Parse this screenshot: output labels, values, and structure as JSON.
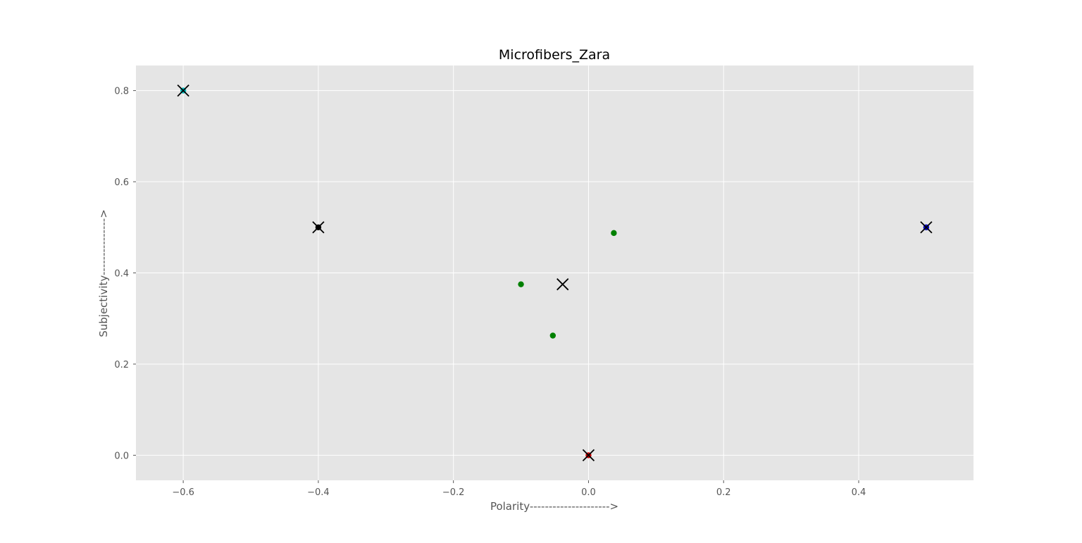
{
  "chart_data": {
    "type": "scatter",
    "title": "Microfibers_Zara",
    "xlabel": "Polarity--------------------->",
    "ylabel": "Subjectivity--------------->",
    "xlim": [
      -0.67,
      0.57
    ],
    "ylim": [
      -0.055,
      0.855
    ],
    "xticks": [
      -0.6,
      -0.4,
      -0.2,
      0.0,
      0.2,
      0.4
    ],
    "xtick_labels": [
      "−0.6",
      "−0.4",
      "−0.2",
      "0.0",
      "0.2",
      "0.4"
    ],
    "yticks": [
      0.0,
      0.2,
      0.4,
      0.6,
      0.8
    ],
    "ytick_labels": [
      "0.0",
      "0.2",
      "0.4",
      "0.6",
      "0.8"
    ],
    "grid": true,
    "background": "#e5e5e5",
    "grid_color": "#ffffff",
    "points": [
      {
        "x": -0.6,
        "y": 0.8,
        "color": "#00bfbf"
      },
      {
        "x": -0.4,
        "y": 0.5,
        "color": "#000000"
      },
      {
        "x": -0.1,
        "y": 0.375,
        "color": "#008000"
      },
      {
        "x": -0.0528,
        "y": 0.2625,
        "color": "#008000"
      },
      {
        "x": 0.0375,
        "y": 0.4875,
        "color": "#008000"
      },
      {
        "x": 0.0,
        "y": 0.0,
        "color": "#cc0000"
      },
      {
        "x": 0.5,
        "y": 0.5,
        "color": "#0000cc"
      }
    ],
    "centroids": [
      {
        "x": -0.6,
        "y": 0.8
      },
      {
        "x": -0.4,
        "y": 0.5
      },
      {
        "x": -0.0383,
        "y": 0.375
      },
      {
        "x": 0.0,
        "y": 0.0
      },
      {
        "x": 0.5,
        "y": 0.5
      }
    ]
  }
}
